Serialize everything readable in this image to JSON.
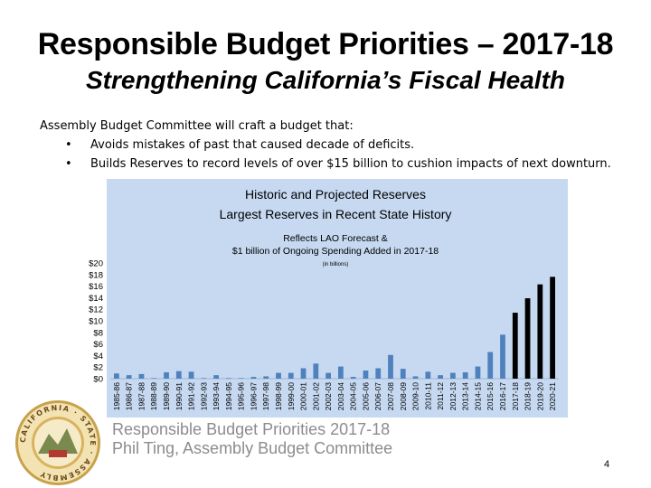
{
  "slide": {
    "title": "Responsible Budget Priorities – 2017-18",
    "subtitle": "Strengthening California’s Fiscal Health",
    "intro": "Assembly Budget Committee will craft a budget that:",
    "bullets": [
      "Avoids mistakes of past that caused decade of deficits.",
      "Builds Reserves to record levels of over $15 billion to cushion impacts of next downturn."
    ],
    "footer_line1": "Responsible Budget Priorities 2017-18",
    "footer_line2": "Phil Ting, Assembly Budget Committee",
    "page_number": "4",
    "seal_text": "CALIFORNIA · STATE · ASSEMBLY"
  },
  "chart_data": {
    "type": "bar",
    "title_line1": "Historic and Projected Reserves",
    "title_line2": "Largest Reserves in Recent State History",
    "annotation_line1": "Reflects LAO Forecast &",
    "annotation_line2": "$1 billion of Ongoing Spending Added in 2017-18",
    "unit_label": "(in billions)",
    "ylim": [
      0,
      20
    ],
    "yticks": [
      "$0",
      "$2",
      "$4",
      "$6",
      "$8",
      "$10",
      "$12",
      "$14",
      "$16",
      "$18",
      "$20"
    ],
    "categories": [
      "1985-86",
      "1986-87",
      "1987-88",
      "1988-89",
      "1989-90",
      "1990-91",
      "1991-92",
      "1992-93",
      "1993-94",
      "1994-95",
      "1995-96",
      "1996-97",
      "1997-98",
      "1998-99",
      "1999-00",
      "2000-01",
      "2001-02",
      "2002-03",
      "2003-04",
      "2004-05",
      "2005-06",
      "2006-07",
      "2007-08",
      "2008-09",
      "2009-10",
      "2010-11",
      "2011-12",
      "2012-13",
      "2013-14",
      "2014-15",
      "2015-16",
      "2016-17",
      "2017-18",
      "2018-19",
      "2019-20",
      "2020-21"
    ],
    "values": [
      0.9,
      0.6,
      0.8,
      0.1,
      1.1,
      1.3,
      1.2,
      0.1,
      0.6,
      0.1,
      0.1,
      0.3,
      0.4,
      1.0,
      1.0,
      1.8,
      2.6,
      1.0,
      2.1,
      0.3,
      1.4,
      1.8,
      4.1,
      1.7,
      0.4,
      1.2,
      0.6,
      1.0,
      1.1,
      2.1,
      4.6,
      7.6,
      11.4,
      13.9,
      16.3,
      17.6
    ],
    "projected_from_index": 32,
    "colors": {
      "historic": "#4f81bd",
      "projected": "#000000",
      "background": "#c6d9f1"
    }
  }
}
